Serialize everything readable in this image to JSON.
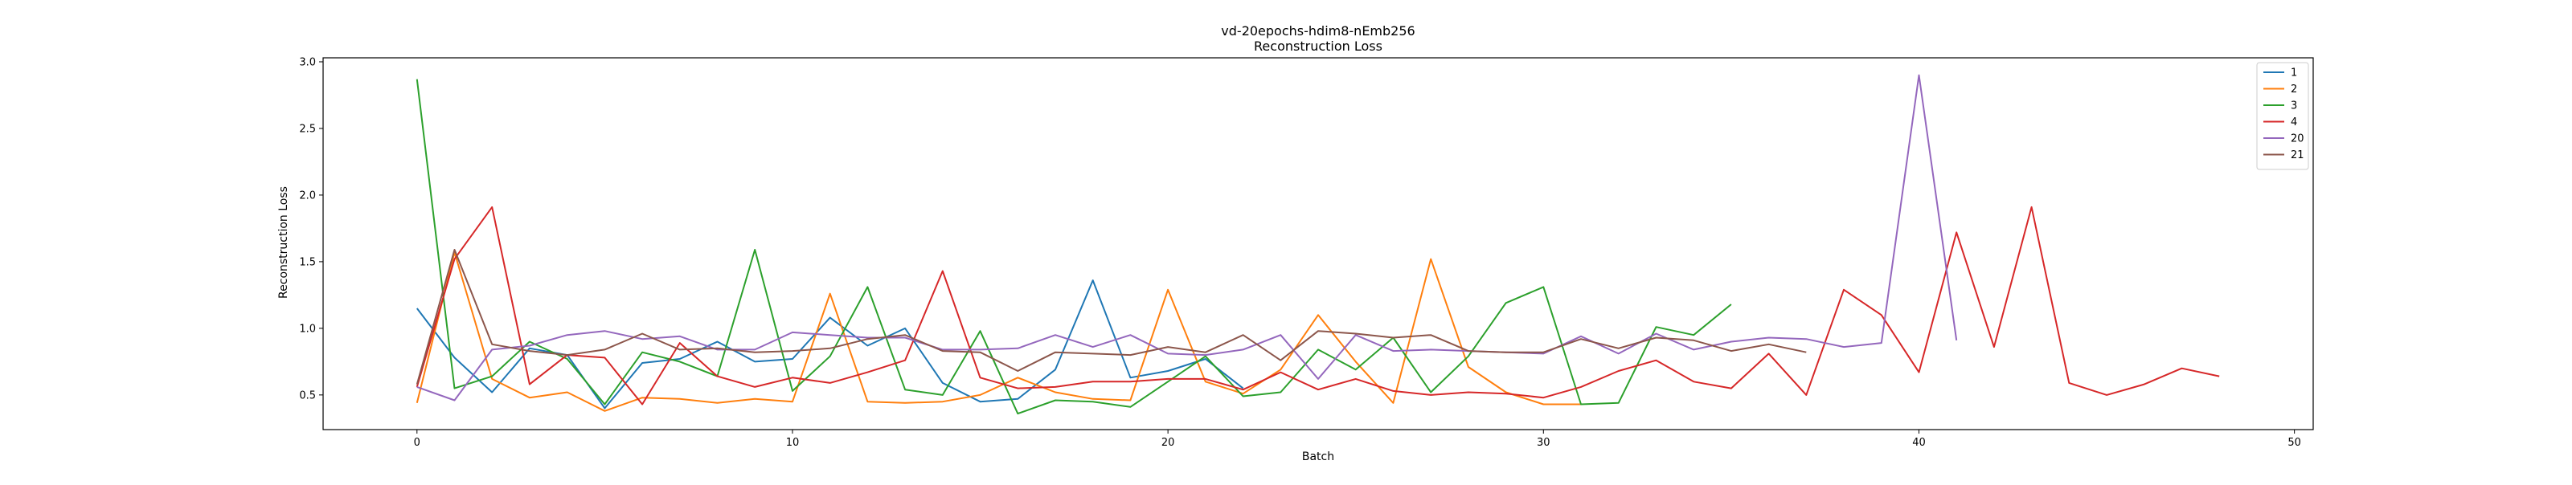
{
  "chart_data": {
    "type": "line",
    "title": "vd-20epochs-hdim8-nEmb256",
    "subtitle": "Reconstruction Loss",
    "xlabel": "Batch",
    "ylabel": "Reconstruction Loss",
    "xlim": [
      -2.5,
      50.5
    ],
    "ylim": [
      0.24,
      3.03
    ],
    "xticks": [
      0,
      10,
      20,
      30,
      40,
      50
    ],
    "yticks": [
      0.5,
      1.0,
      1.5,
      2.0,
      2.5,
      3.0
    ],
    "xtick_labels": [
      "0",
      "10",
      "20",
      "30",
      "40",
      "50"
    ],
    "ytick_labels": [
      "0.5",
      "1.0",
      "1.5",
      "2.0",
      "2.5",
      "3.0"
    ],
    "grid": false,
    "legend_position": "top-right",
    "series": [
      {
        "name": "1",
        "color": "#1f77b4",
        "x": [
          0,
          1,
          2,
          3,
          4,
          5,
          6,
          7,
          8,
          9,
          10,
          11,
          12,
          13,
          14,
          15,
          16,
          17,
          18,
          19,
          20,
          21,
          22
        ],
        "values": [
          1.15,
          0.78,
          0.52,
          0.85,
          0.8,
          0.4,
          0.74,
          0.77,
          0.9,
          0.75,
          0.77,
          1.08,
          0.87,
          1.0,
          0.59,
          0.45,
          0.47,
          0.69,
          1.36,
          0.63,
          0.68,
          0.77,
          0.55
        ]
      },
      {
        "name": "2",
        "color": "#ff7f0e",
        "x": [
          0,
          1,
          2,
          3,
          4,
          5,
          6,
          7,
          8,
          9,
          10,
          11,
          12,
          13,
          14,
          15,
          16,
          17,
          18,
          19,
          20,
          21,
          22,
          23,
          24,
          25,
          26,
          27,
          28,
          29,
          30,
          31
        ],
        "values": [
          0.44,
          1.57,
          0.62,
          0.48,
          0.52,
          0.38,
          0.48,
          0.47,
          0.44,
          0.47,
          0.45,
          1.26,
          0.45,
          0.44,
          0.45,
          0.5,
          0.63,
          0.52,
          0.47,
          0.46,
          1.29,
          0.6,
          0.51,
          0.69,
          1.1,
          0.75,
          0.44,
          1.52,
          0.71,
          0.52,
          0.43,
          0.43
        ]
      },
      {
        "name": "3",
        "color": "#2ca02c",
        "x": [
          0,
          1,
          2,
          3,
          4,
          5,
          6,
          7,
          8,
          9,
          10,
          11,
          12,
          13,
          14,
          15,
          16,
          17,
          18,
          19,
          20,
          21,
          22,
          23,
          24,
          25,
          26,
          27,
          28,
          29,
          30,
          31,
          32,
          33,
          34,
          35
        ],
        "values": [
          2.87,
          0.55,
          0.64,
          0.9,
          0.77,
          0.43,
          0.82,
          0.75,
          0.64,
          1.59,
          0.53,
          0.79,
          1.31,
          0.54,
          0.5,
          0.98,
          0.36,
          0.46,
          0.45,
          0.41,
          0.6,
          0.79,
          0.49,
          0.52,
          0.84,
          0.69,
          0.93,
          0.52,
          0.79,
          1.19,
          1.31,
          0.43,
          0.44,
          1.01,
          0.95,
          1.18
        ]
      },
      {
        "name": "4",
        "color": "#d62728",
        "x": [
          0,
          1,
          2,
          3,
          4,
          5,
          6,
          7,
          8,
          9,
          10,
          11,
          12,
          13,
          14,
          15,
          16,
          17,
          18,
          19,
          20,
          21,
          22,
          23,
          24,
          25,
          26,
          27,
          28,
          29,
          30,
          31,
          32,
          33,
          34,
          35,
          36,
          37,
          38,
          39,
          40,
          41,
          42,
          43,
          44,
          45,
          46,
          47,
          48
        ],
        "values": [
          0.56,
          1.52,
          1.91,
          0.58,
          0.8,
          0.78,
          0.43,
          0.89,
          0.64,
          0.56,
          0.63,
          0.59,
          0.67,
          0.76,
          1.43,
          0.63,
          0.55,
          0.56,
          0.6,
          0.6,
          0.62,
          0.62,
          0.54,
          0.67,
          0.54,
          0.62,
          0.53,
          0.5,
          0.52,
          0.51,
          0.48,
          0.56,
          0.68,
          0.76,
          0.6,
          0.55,
          0.81,
          0.5,
          1.29,
          1.1,
          0.67,
          1.72,
          0.86,
          1.91,
          0.59,
          0.5,
          0.58,
          0.7,
          0.64
        ]
      },
      {
        "name": "20",
        "color": "#9467bd",
        "x": [
          0,
          1,
          2,
          3,
          4,
          5,
          6,
          7,
          8,
          9,
          10,
          11,
          12,
          13,
          14,
          15,
          16,
          17,
          18,
          19,
          20,
          21,
          22,
          23,
          24,
          25,
          26,
          27,
          28,
          29,
          30,
          31,
          32,
          33,
          34,
          35,
          36,
          37,
          38,
          39,
          40,
          41
        ],
        "values": [
          0.56,
          0.46,
          0.84,
          0.87,
          0.95,
          0.98,
          0.92,
          0.94,
          0.84,
          0.84,
          0.97,
          0.95,
          0.93,
          0.93,
          0.84,
          0.84,
          0.85,
          0.95,
          0.86,
          0.95,
          0.81,
          0.8,
          0.84,
          0.95,
          0.62,
          0.95,
          0.83,
          0.84,
          0.83,
          0.82,
          0.81,
          0.94,
          0.81,
          0.96,
          0.84,
          0.9,
          0.93,
          0.92,
          0.86,
          0.89,
          2.9,
          0.91
        ]
      },
      {
        "name": "21",
        "color": "#8c564b",
        "x": [
          0,
          1,
          2,
          3,
          4,
          5,
          6,
          7,
          8,
          9,
          10,
          11,
          12,
          13,
          14,
          15,
          16,
          17,
          18,
          19,
          20,
          21,
          22,
          23,
          24,
          25,
          26,
          27,
          28,
          29,
          30,
          31,
          32,
          33,
          34,
          35,
          36,
          37
        ],
        "values": [
          0.58,
          1.59,
          0.88,
          0.83,
          0.8,
          0.84,
          0.96,
          0.84,
          0.85,
          0.82,
          0.83,
          0.85,
          0.92,
          0.95,
          0.83,
          0.82,
          0.68,
          0.82,
          0.81,
          0.8,
          0.86,
          0.82,
          0.95,
          0.76,
          0.98,
          0.96,
          0.93,
          0.95,
          0.83,
          0.82,
          0.82,
          0.92,
          0.85,
          0.93,
          0.91,
          0.83,
          0.88,
          0.82
        ]
      }
    ]
  }
}
